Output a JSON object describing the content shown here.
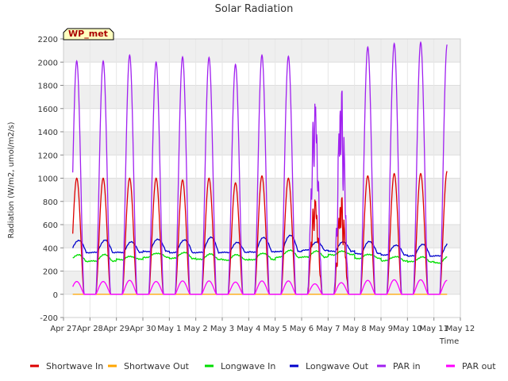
{
  "chart_data": {
    "type": "line",
    "title": "Solar Radiation",
    "xlabel": "Time",
    "ylabel": "Radiation (W/m2, umol/m2/s)",
    "station_label": "WP_met",
    "ylim": [
      -200,
      2200
    ],
    "yticks": [
      -200,
      0,
      200,
      400,
      600,
      800,
      1000,
      1200,
      1400,
      1600,
      1800,
      2000,
      2200
    ],
    "xlim": [
      0,
      15
    ],
    "xticks": [
      {
        "pos": 0,
        "label": "Apr 27"
      },
      {
        "pos": 1,
        "label": "Apr 28"
      },
      {
        "pos": 2,
        "label": "Apr 29"
      },
      {
        "pos": 3,
        "label": "Apr 30"
      },
      {
        "pos": 4,
        "label": "May 1"
      },
      {
        "pos": 5,
        "label": "May 2"
      },
      {
        "pos": 6,
        "label": "May 3"
      },
      {
        "pos": 7,
        "label": "May 4"
      },
      {
        "pos": 8,
        "label": "May 5"
      },
      {
        "pos": 9,
        "label": "May 6"
      },
      {
        "pos": 10,
        "label": "May 7"
      },
      {
        "pos": 11,
        "label": "May 8"
      },
      {
        "pos": 12,
        "label": "May 9"
      },
      {
        "pos": 13,
        "label": "May 10"
      },
      {
        "pos": 14,
        "label": "May 11"
      },
      {
        "pos": 15,
        "label": "May 12"
      }
    ],
    "grid": true,
    "legend_position": "bottom",
    "data_start_day": 0.35,
    "data_end_day": 14.5,
    "daily_peaks": {
      "days": [
        "Apr 28",
        "Apr 29",
        "Apr 30",
        "May 1",
        "May 2",
        "May 3",
        "May 4",
        "May 5",
        "May 6",
        "May 7",
        "May 8",
        "May 9",
        "May 10",
        "May 11"
      ],
      "shortwave_in": [
        1000,
        1000,
        1000,
        985,
        1000,
        960,
        1020,
        1000,
        840,
        860,
        1020,
        1040,
        1040,
        1060
      ],
      "par_in": [
        2010,
        2060,
        2000,
        2045,
        2040,
        1980,
        2060,
        2050,
        1690,
        1810,
        2130,
        2160,
        2170,
        2150
      ],
      "par_out": [
        110,
        120,
        110,
        115,
        115,
        105,
        115,
        115,
        90,
        100,
        120,
        125,
        125,
        120
      ],
      "longwave_out_day": [
        465,
        450,
        475,
        470,
        490,
        445,
        490,
        510,
        450,
        450,
        455,
        425,
        430,
        440
      ],
      "longwave_out_night": [
        360,
        360,
        370,
        360,
        360,
        360,
        365,
        370,
        380,
        370,
        350,
        340,
        330,
        330
      ],
      "longwave_in": [
        340,
        325,
        355,
        360,
        345,
        340,
        355,
        380,
        370,
        370,
        345,
        325,
        320,
        320
      ],
      "longwave_in_night": [
        285,
        300,
        320,
        310,
        300,
        295,
        300,
        320,
        320,
        340,
        310,
        290,
        280,
        270
      ]
    },
    "series": [
      {
        "name": "Shortwave In",
        "color": "#dd0000"
      },
      {
        "name": "Shortwave Out",
        "color": "#ffa500"
      },
      {
        "name": "Longwave In",
        "color": "#00dd00"
      },
      {
        "name": "Longwave Out",
        "color": "#0000cc"
      },
      {
        "name": "PAR in",
        "color": "#a020f0"
      },
      {
        "name": "PAR out",
        "color": "#ff00ff"
      }
    ]
  }
}
